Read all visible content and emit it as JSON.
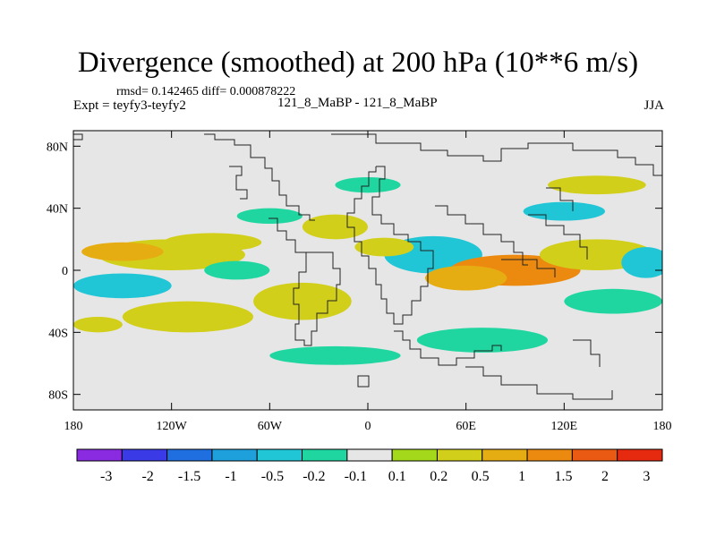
{
  "chart_data": {
    "type": "heatmap",
    "title": "Divergence (smoothed) at 200 hPa (10**6 m/s)",
    "stats_text": "rmsd= 0.142465  diff= 0.000878222",
    "expt_text": "Expt = teyfy3-teyfy2",
    "subtitle": "121_8_MaBP - 121_8_MaBP",
    "season": "JJA",
    "xlim": [
      -180,
      180
    ],
    "ylim": [
      -90,
      90
    ],
    "x_ticks": [
      {
        "value": -180,
        "label": "180"
      },
      {
        "value": -120,
        "label": "120W"
      },
      {
        "value": -60,
        "label": "60W"
      },
      {
        "value": 0,
        "label": "0"
      },
      {
        "value": 60,
        "label": "60E"
      },
      {
        "value": 120,
        "label": "120E"
      },
      {
        "value": 180,
        "label": "180"
      }
    ],
    "y_ticks": [
      {
        "value": 80,
        "label": "80N"
      },
      {
        "value": 40,
        "label": "40N"
      },
      {
        "value": 0,
        "label": "0"
      },
      {
        "value": -40,
        "label": "40S"
      },
      {
        "value": -80,
        "label": "80S"
      }
    ],
    "colorbar": {
      "colors": [
        "#8a2be2",
        "#3a3ae6",
        "#1f6fe0",
        "#1ea0dc",
        "#21c6d6",
        "#1fd6a0",
        "#e6e6e6",
        "#a4d81a",
        "#d2cf1a",
        "#e6ad12",
        "#ec8a10",
        "#ea5a12",
        "#e52a10"
      ],
      "labels": [
        "-3",
        "-2",
        "-1.5",
        "-1",
        "-0.5",
        "-0.2",
        "-0.1",
        "0.1",
        "0.2",
        "0.5",
        "1",
        "1.5",
        "2",
        "3"
      ]
    },
    "blobs": [
      {
        "lon": -120,
        "lat": 10,
        "rx": 45,
        "ry": 10,
        "level": 8
      },
      {
        "lon": -150,
        "lat": 12,
        "rx": 25,
        "ry": 6,
        "level": 9
      },
      {
        "lon": -95,
        "lat": 18,
        "rx": 30,
        "ry": 6,
        "level": 8
      },
      {
        "lon": -150,
        "lat": -10,
        "rx": 30,
        "ry": 8,
        "level": 4
      },
      {
        "lon": -110,
        "lat": -30,
        "rx": 40,
        "ry": 10,
        "level": 8
      },
      {
        "lon": -40,
        "lat": -20,
        "rx": 30,
        "ry": 12,
        "level": 8
      },
      {
        "lon": -20,
        "lat": -55,
        "rx": 40,
        "ry": 6,
        "level": 5
      },
      {
        "lon": 40,
        "lat": 10,
        "rx": 30,
        "ry": 12,
        "level": 4
      },
      {
        "lon": 90,
        "lat": 0,
        "rx": 40,
        "ry": 10,
        "level": 10
      },
      {
        "lon": 60,
        "lat": -5,
        "rx": 25,
        "ry": 8,
        "level": 9
      },
      {
        "lon": 140,
        "lat": 10,
        "rx": 35,
        "ry": 10,
        "level": 8
      },
      {
        "lon": 150,
        "lat": -20,
        "rx": 30,
        "ry": 8,
        "level": 5
      },
      {
        "lon": 70,
        "lat": -45,
        "rx": 40,
        "ry": 8,
        "level": 5
      },
      {
        "lon": 0,
        "lat": 55,
        "rx": 20,
        "ry": 5,
        "level": 5
      },
      {
        "lon": 140,
        "lat": 55,
        "rx": 30,
        "ry": 6,
        "level": 8
      },
      {
        "lon": 120,
        "lat": 38,
        "rx": 25,
        "ry": 6,
        "level": 4
      },
      {
        "lon": -20,
        "lat": 28,
        "rx": 20,
        "ry": 8,
        "level": 8
      },
      {
        "lon": -60,
        "lat": 35,
        "rx": 20,
        "ry": 5,
        "level": 5
      },
      {
        "lon": 10,
        "lat": 15,
        "rx": 18,
        "ry": 6,
        "level": 8
      },
      {
        "lon": -80,
        "lat": 0,
        "rx": 20,
        "ry": 6,
        "level": 5
      },
      {
        "lon": 170,
        "lat": 5,
        "rx": 15,
        "ry": 10,
        "level": 4
      },
      {
        "lon": -165,
        "lat": -35,
        "rx": 15,
        "ry": 5,
        "level": 8
      }
    ]
  }
}
